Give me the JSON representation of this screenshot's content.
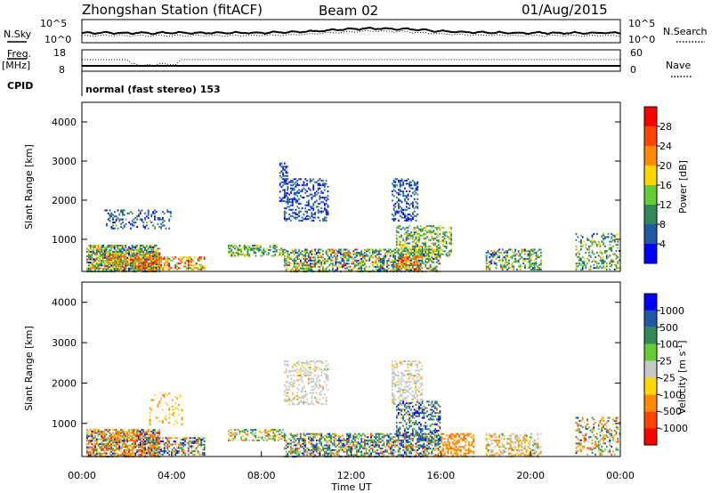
{
  "header": {
    "station": "Zhongshan Station (fitACF)",
    "beam": "Beam 02",
    "date": "01/Aug/2015"
  },
  "top_panels": {
    "nsky_label": "N.Sky",
    "nsky_ticks": [
      "10^5",
      "10^0"
    ],
    "nsearch_label": "N.Search",
    "nsearch_ticks": [
      "10^5",
      "10^0"
    ],
    "freq_label_1": "Freq.",
    "freq_label_2": "[MHz]",
    "freq_ticks": [
      "18",
      "8"
    ],
    "nave_label": "Nave",
    "nave_ticks": [
      "60",
      "0"
    ],
    "cpid_label": "CPID",
    "cpid_text": "normal (fast stereo) 153"
  },
  "chart_data": [
    {
      "type": "heatmap",
      "name": "power-panel",
      "ylabel": "Slant Range [km]",
      "xlabel": "",
      "xlim": [
        "00:00",
        "24:00"
      ],
      "ylim": [
        180,
        4500
      ],
      "yticks": [
        "1000",
        "2000",
        "3000",
        "4000"
      ],
      "colorbar": {
        "label": "Power [dB]",
        "ticks": [
          "4",
          "8",
          "12",
          "16",
          "20",
          "24",
          "28"
        ],
        "colors": [
          "#0000ff",
          "#1e5aa8",
          "#2e8b57",
          "#66cc33",
          "#ffd700",
          "#ff8c00",
          "#ff4500",
          "#ff0000"
        ]
      }
    },
    {
      "type": "heatmap",
      "name": "velocity-panel",
      "ylabel": "Slant Range [km]",
      "xlabel": "Time UT",
      "xlim": [
        "00:00",
        "24:00"
      ],
      "ylim": [
        180,
        4500
      ],
      "yticks": [
        "1000",
        "2000",
        "3000",
        "4000"
      ],
      "xticks": [
        "00:00",
        "04:00",
        "08:00",
        "12:00",
        "16:00",
        "20:00",
        "00:00"
      ],
      "colorbar": {
        "label": "Velocity [m s",
        "label_sup": "-1",
        "label_end": "]",
        "ticks": [
          "1000",
          "500",
          "100",
          "25",
          "-25",
          "-100",
          "-500",
          "-1000"
        ],
        "colors": [
          "#0000ff",
          "#1e5aa8",
          "#2e8b57",
          "#66cc33",
          "#c8c8c8",
          "#ffd700",
          "#ff8c00",
          "#ff4500",
          "#ff0000"
        ]
      }
    }
  ]
}
